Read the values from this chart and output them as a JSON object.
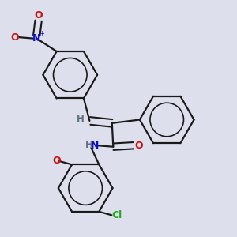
{
  "background_color": "#dde0ec",
  "bond_color": "#1a1a1a",
  "atom_colors": {
    "N": "#1010cc",
    "O": "#cc1010",
    "Cl": "#22aa22",
    "H_gray": "#607080",
    "C": "#1a1a1a"
  },
  "figsize": [
    3.0,
    3.0
  ],
  "dpi": 100
}
